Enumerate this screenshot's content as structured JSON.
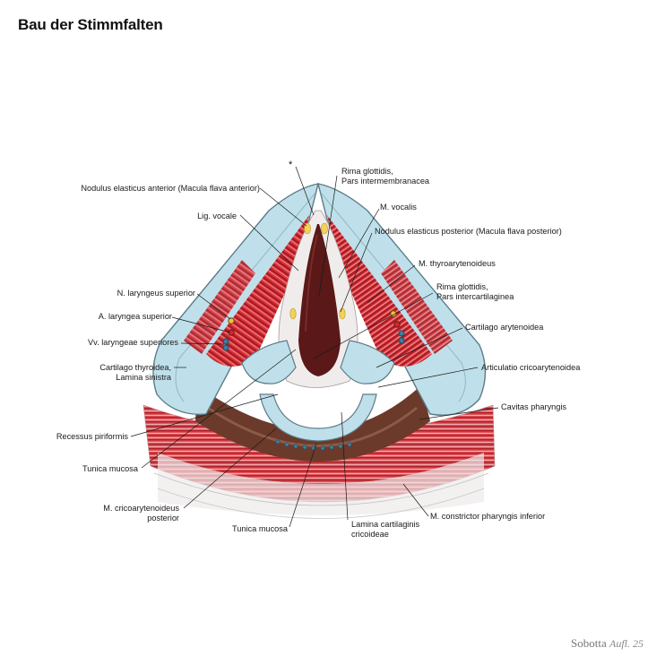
{
  "title": "Bau der Stimmfalten",
  "asterisk": "*",
  "credit": {
    "name": "Sobotta",
    "edition": "Aufl. 25"
  },
  "colors": {
    "cartilage": "#bfe0ea",
    "muscle": "#c8232c",
    "mucosa": "#e8e4e0",
    "lumen": "#5a1818",
    "pharynx": "#6b3a2a"
  },
  "labels": {
    "rima_intermembranacea": [
      "Rima glottidis,",
      "Pars intermembranacea"
    ],
    "nodulus_anterior": "Nodulus elasticus anterior (Macula flava anterior)",
    "m_vocalis": "M. vocalis",
    "lig_vocale": "Lig. vocale",
    "nodulus_posterior": "Nodulus elasticus posterior (Macula flava posterior)",
    "m_thyroarytenoideus": "M. thyroarytenoideus",
    "rima_intercartilaginea": [
      "Rima glottidis,",
      "Pars intercartilaginea"
    ],
    "n_laryngeus": "N. laryngeus superior",
    "a_laryngea": "A. laryngea superior",
    "cartilago_arytenoidea": "Cartilago arytenoidea",
    "vv_laryngeae": "Vv. laryngeae superiores",
    "cartilago_thyroidea": [
      "Cartilago thyroidea,",
      "Lamina sinistra"
    ],
    "articulatio": "Articulatio cricoarytenoidea",
    "cavitas": "Cavitas pharyngis",
    "recessus": "Recessus piriformis",
    "tunica_mucosa_left": "Tunica mucosa",
    "m_cricoarytenoideus": [
      "M. cricoarytenoideus",
      "posterior"
    ],
    "m_constrictor": "M. constrictor pharyngis inferior",
    "tunica_mucosa_bottom": "Tunica mucosa",
    "lamina_cricoideae": [
      "Lamina cartilaginis",
      "cricoideae"
    ]
  }
}
